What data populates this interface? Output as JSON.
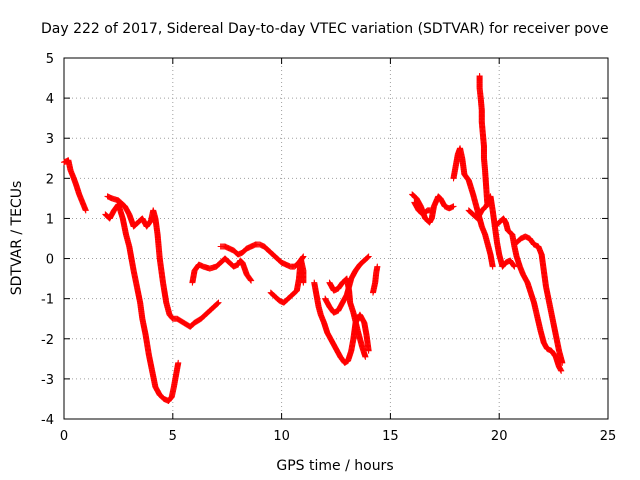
{
  "chart_data": {
    "type": "scatter",
    "title": "Day 222 of 2017, Sidereal Day-to-day VTEC variation (SDTVAR) for receiver pove",
    "xlabel": "GPS time / hours",
    "ylabel": "SDTVAR / TECUs",
    "xlim": [
      0,
      25
    ],
    "ylim": [
      -4,
      5
    ],
    "xticks": [
      "0",
      "5",
      "10",
      "15",
      "20",
      "25"
    ],
    "yticks": [
      "-4",
      "-3",
      "-2",
      "-1",
      "0",
      "1",
      "2",
      "3",
      "4",
      "5"
    ],
    "grid": true,
    "marker": "+",
    "color": "#ff0000",
    "series": [
      {
        "name": "SDTVAR",
        "segments": [
          [
            [
              0.0,
              2.4
            ],
            [
              0.2,
              2.45
            ],
            [
              0.3,
              2.2
            ],
            [
              0.45,
              2.0
            ],
            [
              0.55,
              1.85
            ],
            [
              0.7,
              1.6
            ],
            [
              0.85,
              1.4
            ],
            [
              1.0,
              1.2
            ]
          ],
          [
            [
              1.9,
              1.1
            ],
            [
              2.1,
              1.0
            ],
            [
              2.3,
              1.2
            ],
            [
              2.5,
              1.35
            ],
            [
              2.7,
              1.0
            ],
            [
              2.85,
              0.6
            ],
            [
              3.0,
              0.3
            ],
            [
              3.1,
              0.0
            ],
            [
              3.2,
              -0.3
            ],
            [
              3.35,
              -0.7
            ],
            [
              3.5,
              -1.1
            ],
            [
              3.6,
              -1.5
            ],
            [
              3.75,
              -1.9
            ],
            [
              3.9,
              -2.4
            ],
            [
              4.05,
              -2.8
            ],
            [
              4.2,
              -3.2
            ],
            [
              4.4,
              -3.4
            ],
            [
              4.6,
              -3.5
            ],
            [
              4.8,
              -3.55
            ],
            [
              4.95,
              -3.45
            ],
            [
              5.05,
              -3.2
            ],
            [
              5.15,
              -2.9
            ],
            [
              5.25,
              -2.6
            ]
          ],
          [
            [
              2.0,
              1.55
            ],
            [
              2.2,
              1.5
            ],
            [
              2.5,
              1.45
            ],
            [
              2.8,
              1.3
            ],
            [
              3.0,
              1.1
            ],
            [
              3.2,
              0.8
            ],
            [
              3.4,
              0.9
            ],
            [
              3.6,
              1.0
            ],
            [
              3.8,
              0.8
            ],
            [
              4.0,
              0.95
            ],
            [
              4.1,
              1.2
            ],
            [
              4.2,
              1.0
            ],
            [
              4.3,
              0.6
            ],
            [
              4.4,
              0.0
            ],
            [
              4.55,
              -0.6
            ],
            [
              4.7,
              -1.1
            ],
            [
              4.85,
              -1.4
            ],
            [
              5.0,
              -1.5
            ],
            [
              5.2,
              -1.5
            ],
            [
              5.5,
              -1.6
            ],
            [
              5.8,
              -1.7
            ],
            [
              6.0,
              -1.6
            ],
            [
              6.3,
              -1.5
            ],
            [
              6.6,
              -1.35
            ],
            [
              6.9,
              -1.2
            ],
            [
              7.1,
              -1.1
            ]
          ],
          [
            [
              5.9,
              -0.6
            ],
            [
              6.0,
              -0.3
            ],
            [
              6.2,
              -0.15
            ],
            [
              6.4,
              -0.2
            ],
            [
              6.7,
              -0.25
            ],
            [
              7.0,
              -0.2
            ],
            [
              7.2,
              -0.1
            ],
            [
              7.4,
              0.0
            ],
            [
              7.6,
              -0.1
            ],
            [
              7.8,
              -0.2
            ],
            [
              8.0,
              -0.15
            ],
            [
              8.1,
              -0.05
            ],
            [
              8.2,
              -0.1
            ],
            [
              8.4,
              -0.4
            ],
            [
              8.6,
              -0.55
            ]
          ],
          [
            [
              7.2,
              0.3
            ],
            [
              7.4,
              0.3
            ],
            [
              7.6,
              0.25
            ],
            [
              7.8,
              0.2
            ],
            [
              8.0,
              0.1
            ],
            [
              8.2,
              0.15
            ],
            [
              8.4,
              0.25
            ],
            [
              8.6,
              0.3
            ],
            [
              8.8,
              0.35
            ],
            [
              9.0,
              0.35
            ],
            [
              9.2,
              0.3
            ],
            [
              9.4,
              0.2
            ],
            [
              9.6,
              0.1
            ],
            [
              9.8,
              0.0
            ],
            [
              10.0,
              -0.1
            ],
            [
              10.2,
              -0.15
            ],
            [
              10.4,
              -0.2
            ],
            [
              10.6,
              -0.2
            ],
            [
              10.8,
              -0.1
            ],
            [
              11.0,
              0.05
            ]
          ],
          [
            [
              9.5,
              -0.85
            ],
            [
              9.7,
              -0.95
            ],
            [
              9.9,
              -1.05
            ],
            [
              10.1,
              -1.1
            ],
            [
              10.3,
              -1.0
            ],
            [
              10.5,
              -0.9
            ],
            [
              10.7,
              -0.8
            ],
            [
              10.8,
              -0.5
            ],
            [
              10.85,
              -0.2
            ],
            [
              10.9,
              -0.05
            ],
            [
              11.0,
              -0.3
            ],
            [
              11.0,
              -0.6
            ]
          ],
          [
            [
              11.5,
              -0.6
            ],
            [
              11.6,
              -0.9
            ],
            [
              11.7,
              -1.2
            ],
            [
              11.8,
              -1.4
            ],
            [
              11.95,
              -1.6
            ],
            [
              12.1,
              -1.85
            ],
            [
              12.3,
              -2.05
            ],
            [
              12.5,
              -2.25
            ],
            [
              12.7,
              -2.45
            ],
            [
              12.9,
              -2.6
            ],
            [
              13.05,
              -2.55
            ],
            [
              13.2,
              -2.3
            ],
            [
              13.3,
              -2.0
            ],
            [
              13.4,
              -1.6
            ],
            [
              13.6,
              -1.4
            ],
            [
              13.8,
              -1.6
            ],
            [
              13.9,
              -1.9
            ],
            [
              14.0,
              -2.3
            ]
          ],
          [
            [
              12.0,
              -1.0
            ],
            [
              12.2,
              -1.2
            ],
            [
              12.4,
              -1.35
            ],
            [
              12.6,
              -1.3
            ],
            [
              12.8,
              -1.1
            ],
            [
              13.0,
              -0.9
            ],
            [
              13.1,
              -0.7
            ],
            [
              13.2,
              -0.5
            ],
            [
              13.4,
              -0.3
            ],
            [
              13.6,
              -0.15
            ],
            [
              13.8,
              -0.05
            ],
            [
              14.0,
              0.05
            ]
          ],
          [
            [
              12.2,
              -0.6
            ],
            [
              12.4,
              -0.8
            ],
            [
              12.6,
              -0.75
            ],
            [
              12.8,
              -0.6
            ],
            [
              13.0,
              -0.5
            ],
            [
              13.1,
              -0.8
            ],
            [
              13.15,
              -1.1
            ],
            [
              13.3,
              -1.35
            ],
            [
              13.5,
              -1.8
            ],
            [
              13.7,
              -2.2
            ],
            [
              13.85,
              -2.45
            ]
          ],
          [
            [
              14.2,
              -0.85
            ],
            [
              14.3,
              -0.6
            ],
            [
              14.35,
              -0.35
            ],
            [
              14.4,
              -0.2
            ]
          ],
          [
            [
              16.0,
              1.6
            ],
            [
              16.2,
              1.5
            ],
            [
              16.4,
              1.3
            ],
            [
              16.6,
              1.0
            ],
            [
              16.8,
              0.9
            ],
            [
              16.9,
              1.0
            ],
            [
              17.0,
              1.3
            ],
            [
              17.2,
              1.55
            ],
            [
              17.3,
              1.5
            ],
            [
              17.5,
              1.3
            ],
            [
              17.7,
              1.25
            ],
            [
              17.9,
              1.3
            ]
          ],
          [
            [
              16.1,
              1.4
            ],
            [
              16.3,
              1.2
            ],
            [
              16.5,
              1.1
            ],
            [
              16.7,
              1.2
            ],
            [
              16.9,
              1.2
            ]
          ],
          [
            [
              17.9,
              2.0
            ],
            [
              18.0,
              2.3
            ],
            [
              18.1,
              2.6
            ],
            [
              18.2,
              2.75
            ],
            [
              18.3,
              2.5
            ],
            [
              18.4,
              2.1
            ],
            [
              18.6,
              1.95
            ],
            [
              18.8,
              1.6
            ],
            [
              19.0,
              1.2
            ],
            [
              19.2,
              0.8
            ],
            [
              19.35,
              0.6
            ],
            [
              19.5,
              0.3
            ],
            [
              19.6,
              0.1
            ],
            [
              19.7,
              -0.2
            ]
          ],
          [
            [
              18.6,
              1.2
            ],
            [
              18.8,
              1.1
            ],
            [
              19.0,
              1.0
            ],
            [
              19.2,
              1.2
            ],
            [
              19.4,
              1.3
            ],
            [
              19.6,
              1.55
            ],
            [
              19.7,
              1.2
            ],
            [
              19.8,
              0.8
            ],
            [
              19.9,
              0.4
            ],
            [
              20.0,
              0.1
            ],
            [
              20.15,
              -0.2
            ],
            [
              20.3,
              -0.1
            ],
            [
              20.5,
              -0.05
            ],
            [
              20.7,
              -0.2
            ]
          ],
          [
            [
              19.1,
              4.55
            ],
            [
              19.1,
              4.25
            ],
            [
              19.15,
              4.0
            ],
            [
              19.2,
              3.7
            ],
            [
              19.2,
              3.4
            ],
            [
              19.25,
              3.1
            ],
            [
              19.3,
              2.8
            ],
            [
              19.3,
              2.5
            ],
            [
              19.35,
              2.2
            ],
            [
              19.4,
              1.8
            ],
            [
              19.45,
              1.4
            ]
          ],
          [
            [
              19.8,
              0.8
            ],
            [
              20.0,
              0.9
            ],
            [
              20.2,
              1.0
            ],
            [
              20.3,
              0.9
            ],
            [
              20.4,
              0.7
            ],
            [
              20.6,
              0.6
            ],
            [
              20.7,
              0.3
            ],
            [
              20.8,
              0.05
            ],
            [
              20.95,
              -0.2
            ],
            [
              21.1,
              -0.4
            ],
            [
              21.3,
              -0.6
            ],
            [
              21.45,
              -0.85
            ],
            [
              21.6,
              -1.1
            ],
            [
              21.75,
              -1.45
            ],
            [
              21.9,
              -1.8
            ],
            [
              22.05,
              -2.1
            ],
            [
              22.2,
              -2.25
            ],
            [
              22.4,
              -2.3
            ],
            [
              22.6,
              -2.45
            ],
            [
              22.75,
              -2.7
            ],
            [
              22.85,
              -2.8
            ]
          ],
          [
            [
              20.8,
              0.4
            ],
            [
              21.0,
              0.5
            ],
            [
              21.2,
              0.55
            ],
            [
              21.4,
              0.5
            ],
            [
              21.6,
              0.35
            ],
            [
              21.8,
              0.3
            ],
            [
              21.95,
              0.1
            ],
            [
              22.05,
              -0.3
            ],
            [
              22.15,
              -0.7
            ],
            [
              22.3,
              -1.1
            ],
            [
              22.45,
              -1.5
            ],
            [
              22.6,
              -1.9
            ],
            [
              22.75,
              -2.3
            ],
            [
              22.9,
              -2.6
            ]
          ]
        ]
      }
    ]
  }
}
